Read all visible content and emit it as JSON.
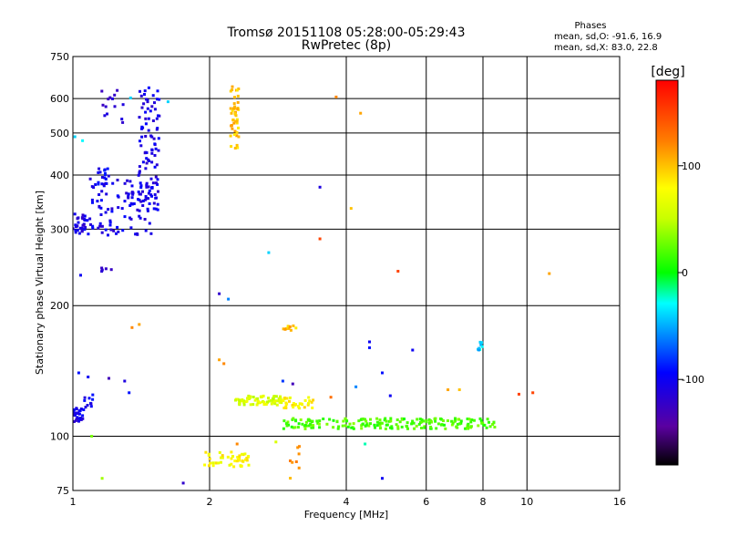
{
  "chart_data": {
    "type": "scatter",
    "title": "Tromsø 20151108 05:28:00-05:29:43",
    "subtitle": "RwPretec (8p)",
    "xlabel": "Frequency [MHz]",
    "ylabel": "Stationary phase Virtual Height [km]",
    "x_scale": "log",
    "y_scale": "log",
    "xlim": [
      1,
      16
    ],
    "ylim": [
      75,
      750
    ],
    "grid": true,
    "x_ticks": [
      {
        "value": 1,
        "label": "1"
      },
      {
        "value": 2,
        "label": "2"
      },
      {
        "value": 4,
        "label": "4"
      },
      {
        "value": 6,
        "label": "6"
      },
      {
        "value": 8,
        "label": "8"
      },
      {
        "value": 10,
        "label": "10"
      },
      {
        "value": 16,
        "label": "16"
      }
    ],
    "y_ticks": [
      {
        "value": 75,
        "label": "75"
      },
      {
        "value": 100,
        "label": "100"
      },
      {
        "value": 200,
        "label": "200"
      },
      {
        "value": 300,
        "label": "300"
      },
      {
        "value": 400,
        "label": "400"
      },
      {
        "value": 500,
        "label": "500"
      },
      {
        "value": 600,
        "label": "600"
      },
      {
        "value": 750,
        "label": "750"
      }
    ],
    "legend": {
      "title": "Phases",
      "line1": "mean, sd,O: -91.6, 16.9",
      "line2": "mean, sd,X:  83.0, 22.8"
    },
    "colorbar": {
      "unit": "[deg]",
      "range": [
        -180,
        180
      ],
      "ticks": [
        {
          "value": 100,
          "label": "100"
        },
        {
          "value": 0,
          "label": "0"
        },
        {
          "value": -100,
          "label": "-100"
        }
      ]
    },
    "clusters": [
      {
        "f": [
          1.0,
          1.06
        ],
        "h": [
          290,
          330
        ],
        "phase": -110,
        "n": 24
      },
      {
        "f": [
          1.06,
          1.5
        ],
        "h": [
          290,
          400
        ],
        "phase": -105,
        "n": 110
      },
      {
        "f": [
          1.4,
          1.55
        ],
        "h": [
          330,
          640
        ],
        "phase": -108,
        "n": 90
      },
      {
        "f": [
          1.12,
          1.2
        ],
        "h": [
          380,
          420
        ],
        "phase": -100,
        "n": 14
      },
      {
        "f": [
          1.15,
          1.3
        ],
        "h": [
          520,
          640
        ],
        "phase": -112,
        "n": 14
      },
      {
        "f": [
          1.0,
          1.06
        ],
        "h": [
          108,
          117
        ],
        "phase": -105,
        "n": 30
      },
      {
        "f": [
          1.06,
          1.12
        ],
        "h": [
          115,
          125
        ],
        "phase": -100,
        "n": 10
      },
      {
        "f": [
          1.15,
          1.25
        ],
        "h": [
          238,
          245
        ],
        "phase": -115,
        "n": 5
      },
      {
        "f": [
          2.22,
          2.32
        ],
        "h": [
          460,
          640
        ],
        "phase": 100,
        "n": 45
      },
      {
        "f": [
          2.28,
          2.9
        ],
        "h": [
          118,
          124
        ],
        "phase": 60,
        "n": 70
      },
      {
        "f": [
          2.85,
          3.4
        ],
        "h": [
          116,
          123
        ],
        "phase": 80,
        "n": 35
      },
      {
        "f": [
          2.9,
          8.5
        ],
        "h": [
          104,
          110
        ],
        "phase": 20,
        "n": 200
      },
      {
        "f": [
          1.95,
          2.5
        ],
        "h": [
          85,
          92
        ],
        "phase": 80,
        "n": 45
      },
      {
        "f": [
          2.9,
          3.1
        ],
        "h": [
          175,
          180
        ],
        "phase": 100,
        "n": 10
      },
      {
        "f": [
          3.0,
          3.2
        ],
        "h": [
          80,
          95
        ],
        "phase": 110,
        "n": 8
      },
      {
        "f": [
          7.8,
          8.0
        ],
        "h": [
          158,
          165
        ],
        "phase": -40,
        "n": 8
      }
    ],
    "points": [
      {
        "f": 1.62,
        "h": 590,
        "phase": -40
      },
      {
        "f": 3.8,
        "h": 605,
        "phase": 120
      },
      {
        "f": 4.3,
        "h": 555,
        "phase": 110
      },
      {
        "f": 3.5,
        "h": 375,
        "phase": -110
      },
      {
        "f": 4.1,
        "h": 335,
        "phase": 100
      },
      {
        "f": 3.5,
        "h": 285,
        "phase": 150
      },
      {
        "f": 2.7,
        "h": 265,
        "phase": -40
      },
      {
        "f": 5.2,
        "h": 240,
        "phase": 150
      },
      {
        "f": 11.2,
        "h": 237,
        "phase": 110
      },
      {
        "f": 2.1,
        "h": 213,
        "phase": -120
      },
      {
        "f": 2.2,
        "h": 207,
        "phase": -60
      },
      {
        "f": 1.04,
        "h": 235,
        "phase": -100
      },
      {
        "f": 1.35,
        "h": 178,
        "phase": 120
      },
      {
        "f": 1.4,
        "h": 181,
        "phase": 110
      },
      {
        "f": 1.03,
        "h": 140,
        "phase": -90
      },
      {
        "f": 1.08,
        "h": 137,
        "phase": -100
      },
      {
        "f": 1.2,
        "h": 136,
        "phase": -130
      },
      {
        "f": 1.3,
        "h": 134,
        "phase": -110
      },
      {
        "f": 1.33,
        "h": 126,
        "phase": -90
      },
      {
        "f": 2.1,
        "h": 150,
        "phase": 110
      },
      {
        "f": 2.15,
        "h": 147,
        "phase": 120
      },
      {
        "f": 2.9,
        "h": 134,
        "phase": -80
      },
      {
        "f": 3.05,
        "h": 132,
        "phase": -130
      },
      {
        "f": 3.7,
        "h": 123,
        "phase": 130
      },
      {
        "f": 4.5,
        "h": 165,
        "phase": -100
      },
      {
        "f": 4.5,
        "h": 160,
        "phase": -90
      },
      {
        "f": 5.6,
        "h": 158,
        "phase": -100
      },
      {
        "f": 4.8,
        "h": 140,
        "phase": -90
      },
      {
        "f": 4.2,
        "h": 130,
        "phase": -60
      },
      {
        "f": 5.0,
        "h": 124,
        "phase": -100
      },
      {
        "f": 6.7,
        "h": 128,
        "phase": 110
      },
      {
        "f": 7.1,
        "h": 128,
        "phase": 100
      },
      {
        "f": 9.6,
        "h": 125,
        "phase": 150
      },
      {
        "f": 10.3,
        "h": 126,
        "phase": 150
      },
      {
        "f": 1.1,
        "h": 100,
        "phase": 30
      },
      {
        "f": 1.16,
        "h": 80,
        "phase": 40
      },
      {
        "f": 1.75,
        "h": 78,
        "phase": -120
      },
      {
        "f": 2.3,
        "h": 96,
        "phase": 120
      },
      {
        "f": 2.8,
        "h": 97,
        "phase": 60
      },
      {
        "f": 4.4,
        "h": 96,
        "phase": -20
      },
      {
        "f": 4.8,
        "h": 80,
        "phase": -100
      },
      {
        "f": 1.01,
        "h": 490,
        "phase": -40
      },
      {
        "f": 1.05,
        "h": 480,
        "phase": -30
      },
      {
        "f": 1.34,
        "h": 602,
        "phase": -40
      }
    ]
  }
}
